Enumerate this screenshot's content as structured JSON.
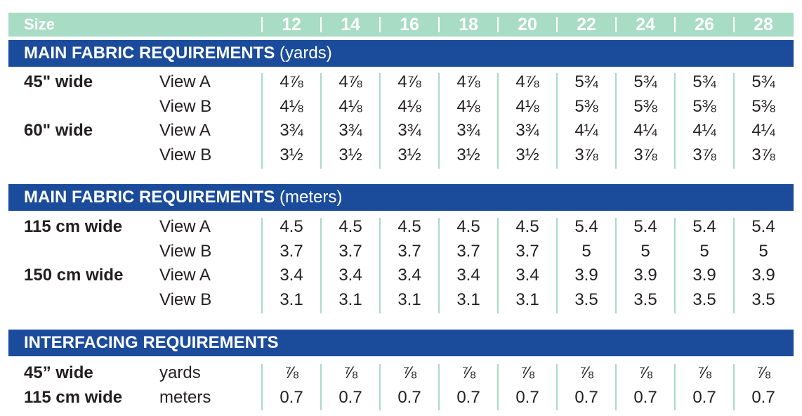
{
  "header": {
    "size_label": "Size",
    "sizes": [
      "12",
      "14",
      "16",
      "18",
      "20",
      "22",
      "24",
      "26",
      "28"
    ]
  },
  "sections": [
    {
      "title": "MAIN FABRIC REQUIREMENTS",
      "unit": " (yards)",
      "rows": [
        {
          "width": "45\" wide",
          "view": "View A",
          "values": [
            "4⅞",
            "4⅞",
            "4⅞",
            "4⅞",
            "4⅞",
            "5¾",
            "5¾",
            "5¾",
            "5¾"
          ]
        },
        {
          "width": "",
          "view": "View B",
          "values": [
            "4⅛",
            "4⅛",
            "4⅛",
            "4⅛",
            "4⅛",
            "5⅜",
            "5⅜",
            "5⅜",
            "5⅜"
          ]
        },
        {
          "width": "60\" wide",
          "view": "View A",
          "values": [
            "3¾",
            "3¾",
            "3¾",
            "3¾",
            "3¾",
            "4¼",
            "4¼",
            "4¼",
            "4¼"
          ]
        },
        {
          "width": "",
          "view": "View B",
          "values": [
            "3½",
            "3½",
            "3½",
            "3½",
            "3½",
            "3⅞",
            "3⅞",
            "3⅞",
            "3⅞"
          ]
        }
      ]
    },
    {
      "title": "MAIN FABRIC REQUIREMENTS",
      "unit": " (meters)",
      "rows": [
        {
          "width": "115 cm wide",
          "view": "View A",
          "values": [
            "4.5",
            "4.5",
            "4.5",
            "4.5",
            "4.5",
            "5.4",
            "5.4",
            "5.4",
            "5.4"
          ]
        },
        {
          "width": "",
          "view": "View B",
          "values": [
            "3.7",
            "3.7",
            "3.7",
            "3.7",
            "3.7",
            "5",
            "5",
            "5",
            "5"
          ]
        },
        {
          "width": "150 cm wide",
          "view": "View A",
          "values": [
            "3.4",
            "3.4",
            "3.4",
            "3.4",
            "3.4",
            "3.9",
            "3.9",
            "3.9",
            "3.9"
          ]
        },
        {
          "width": "",
          "view": "View B",
          "values": [
            "3.1",
            "3.1",
            "3.1",
            "3.1",
            "3.1",
            "3.5",
            "3.5",
            "3.5",
            "3.5"
          ]
        }
      ]
    },
    {
      "title": "INTERFACING REQUIREMENTS",
      "unit": "",
      "rows": [
        {
          "width": "45” wide",
          "view": "yards",
          "values": [
            "⅞",
            "⅞",
            "⅞",
            "⅞",
            "⅞",
            "⅞",
            "⅞",
            "⅞",
            "⅞"
          ]
        },
        {
          "width": "115 cm wide",
          "view": "meters",
          "values": [
            "0.7",
            "0.7",
            "0.7",
            "0.7",
            "0.7",
            "0.7",
            "0.7",
            "0.7",
            "0.7"
          ]
        }
      ]
    }
  ],
  "colors": {
    "header_bg": "#a8dcc4",
    "band_bg": "#1b4c9b",
    "divider": "#a8dcc4"
  }
}
